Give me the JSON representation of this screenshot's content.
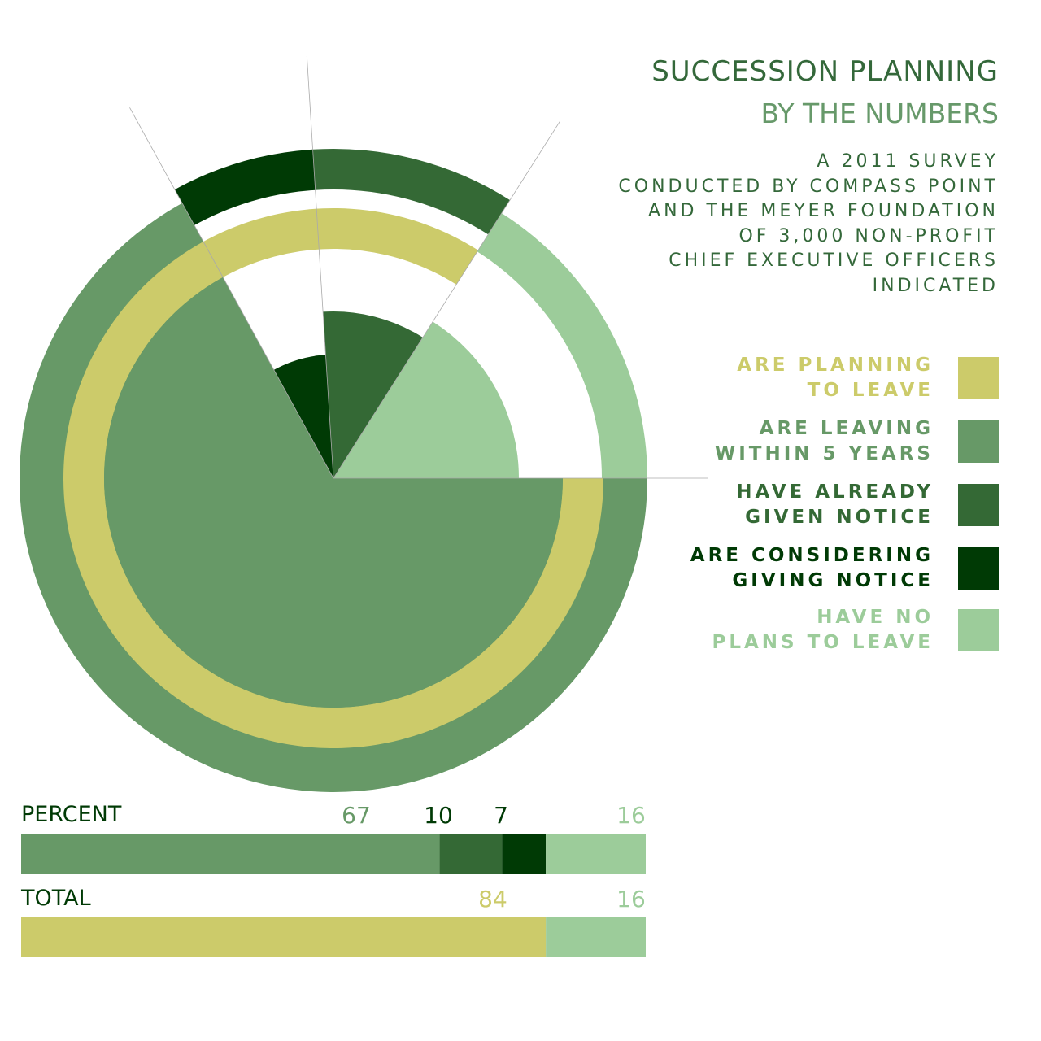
{
  "title": "SUCCESSION PLANNING",
  "subtitle": "BY THE NUMBERS",
  "intro_lines": [
    "A 2011 SURVEY",
    "CONDUCTED BY COMPASS POINT",
    "AND THE MEYER FOUNDATION",
    "OF 3,000 NON-PROFIT",
    "CHIEF EXECUTIVE OFFICERS",
    "INDICATED"
  ],
  "colors": {
    "planning": "#cccb6a",
    "leaving_5y": "#679967",
    "given_notice": "#346935",
    "considering": "#003a05",
    "no_plans": "#9ccc9a"
  },
  "legend": [
    {
      "lines": [
        "ARE PLANNING",
        "TO LEAVE"
      ],
      "color": "#cccb6a"
    },
    {
      "lines": [
        "ARE LEAVING",
        "WITHIN 5 YEARS"
      ],
      "color": "#679967"
    },
    {
      "lines": [
        "HAVE ALREADY",
        "GIVEN NOTICE"
      ],
      "color": "#346935"
    },
    {
      "lines": [
        "ARE CONSIDERING",
        "GIVING NOTICE"
      ],
      "color": "#003a05"
    },
    {
      "lines": [
        "HAVE NO",
        "PLANS TO LEAVE"
      ],
      "color": "#9ccc9a"
    }
  ],
  "chart_data": {
    "type": "bar",
    "bars": [
      {
        "label": "PERCENT",
        "segments": [
          {
            "name": "ARE LEAVING WITHIN 5 YEARS",
            "value": 67,
            "color": "#679967"
          },
          {
            "name": "HAVE ALREADY GIVEN NOTICE",
            "value": 10,
            "color": "#346935"
          },
          {
            "name": "ARE CONSIDERING GIVING NOTICE",
            "value": 7,
            "color": "#003a05"
          },
          {
            "name": "HAVE NO PLANS TO LEAVE",
            "value": 16,
            "color": "#9ccc9a"
          }
        ]
      },
      {
        "label": "TOTAL",
        "segments": [
          {
            "name": "ARE PLANNING TO LEAVE",
            "value": 84,
            "color": "#cccb6a"
          },
          {
            "name": "HAVE NO PLANS TO LEAVE",
            "value": 16,
            "color": "#9ccc9a"
          }
        ]
      }
    ]
  }
}
